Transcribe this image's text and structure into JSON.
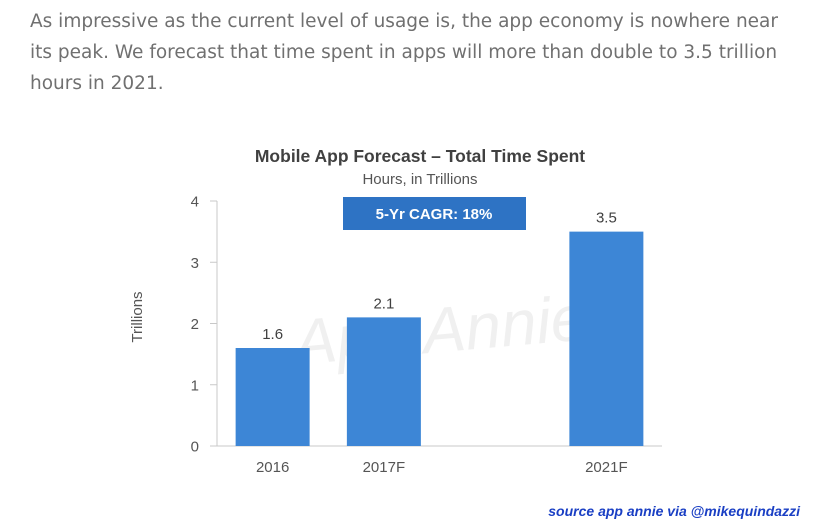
{
  "article": {
    "paragraph": "As impressive as the current level of usage is, the app economy is nowhere near its peak. We forecast that time spent in apps will more than double to 3.5 trillion hours in 2021."
  },
  "chart_data": {
    "type": "bar",
    "title": "Mobile App Forecast – Total Time Spent",
    "subtitle": "Hours, in Trillions",
    "ylabel": "Trillions",
    "xlabel": "",
    "categories": [
      "2016",
      "2017F",
      "",
      "2021F"
    ],
    "values": [
      1.6,
      2.1,
      null,
      3.5
    ],
    "data_labels": [
      "1.6",
      "2.1",
      "",
      "3.5"
    ],
    "ylim": [
      0,
      4
    ],
    "yticks": [
      0,
      1,
      2,
      3,
      4
    ],
    "grid": false,
    "annotation": "5-Yr CAGR: 18%",
    "watermark": "App Annie",
    "bar_color": "#3d86d6",
    "annotation_color": "#2e73c4"
  },
  "credit": {
    "text": "source app annie via @mikequindazzi",
    "color": "#1a3fc4"
  }
}
